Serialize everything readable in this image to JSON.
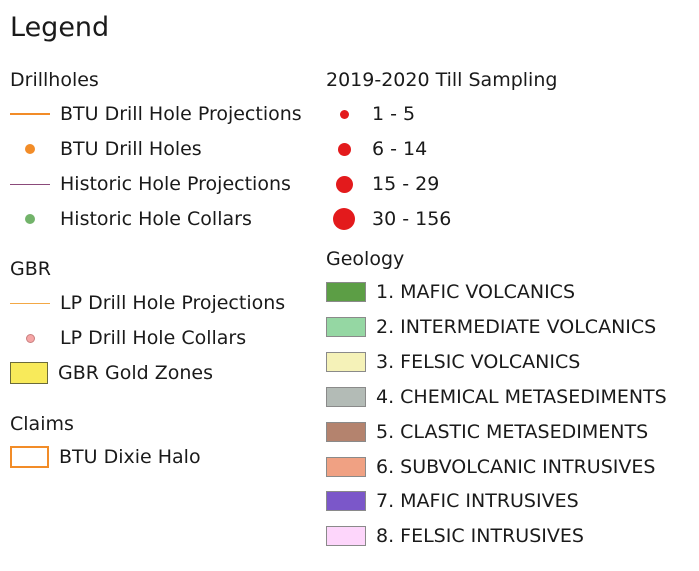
{
  "legend_title": "Legend",
  "drillholes": {
    "title": "Drillholes",
    "items": [
      {
        "label": "BTU Drill Hole Projections",
        "symbol": "line-orange"
      },
      {
        "label": "BTU Drill Holes",
        "symbol": "dot-orange"
      },
      {
        "label": "Historic Hole Projections",
        "symbol": "line-purple"
      },
      {
        "label": "Historic Hole Collars",
        "symbol": "dot-green"
      }
    ]
  },
  "gbr": {
    "title": "GBR",
    "items": [
      {
        "label": "LP Drill Hole Projections",
        "symbol": "line-thin-orange"
      },
      {
        "label": "LP Drill Hole Collars",
        "symbol": "dot-pink"
      },
      {
        "label": "GBR Gold Zones",
        "symbol": "rect-yellow"
      }
    ]
  },
  "claims": {
    "title": "Claims",
    "items": [
      {
        "label": "BTU Dixie Halo",
        "symbol": "rect-orange-outline"
      }
    ]
  },
  "till_sampling": {
    "title": "2019-2020 Till Sampling",
    "items": [
      {
        "label": "1 - 5",
        "color": "#e31a1c"
      },
      {
        "label": "6 - 14",
        "color": "#e31a1c"
      },
      {
        "label": "15 - 29",
        "color": "#e31a1c"
      },
      {
        "label": "30 - 156",
        "color": "#e31a1c"
      }
    ]
  },
  "geology": {
    "title": "Geology",
    "items": [
      {
        "label": "1. MAFIC VOLCANICS",
        "color": "#5c9e45"
      },
      {
        "label": "2. INTERMEDIATE VOLCANICS",
        "color": "#95d7a3"
      },
      {
        "label": "3. FELSIC VOLCANICS",
        "color": "#f5f2b8"
      },
      {
        "label": "4. CHEMICAL METASEDIMENTS",
        "color": "#b3bbb6"
      },
      {
        "label": "5. CLASTIC METASEDIMENTS",
        "color": "#b4836e"
      },
      {
        "label": "6. SUBVOLCANIC INTRUSIVES",
        "color": "#f0a183"
      },
      {
        "label": "7. MAFIC INTRUSIVES",
        "color": "#7b57c9"
      },
      {
        "label": "8. FELSIC INTRUSIVES",
        "color": "#fdd6fb"
      }
    ]
  }
}
